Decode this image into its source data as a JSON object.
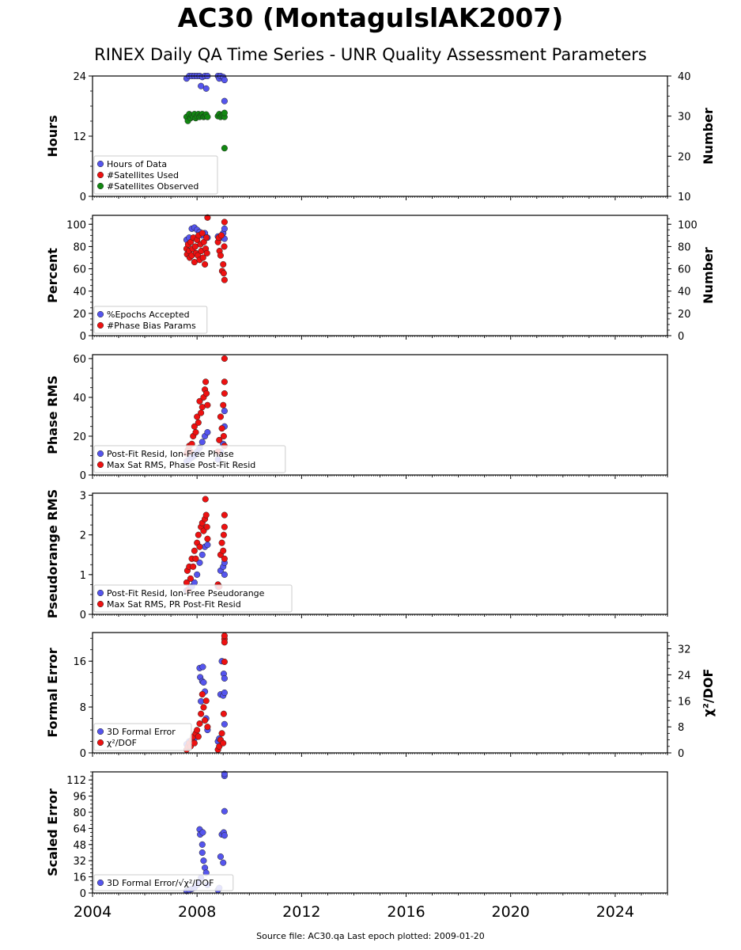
{
  "header": {
    "title": "AC30 (MontaguIslAK2007)",
    "subtitle": "RINEX Daily QA Time Series - UNR Quality Assessment Parameters"
  },
  "footer": {
    "source": "Source file: AC30.qa Last epoch plotted: 2009-01-20"
  },
  "colors": {
    "blue": "#5555ee",
    "red": "#ee1111",
    "green": "#118811"
  },
  "xaxis": {
    "range": [
      2004,
      2026
    ],
    "tick_labels": [
      "2004",
      "2008",
      "2012",
      "2016",
      "2020",
      "2024"
    ],
    "tick_values": [
      2004,
      2008,
      2012,
      2016,
      2020,
      2024
    ]
  },
  "chart_data": [
    {
      "type": "scatter",
      "ylabel": "Hours",
      "ylabel2": "Number",
      "ylim": [
        0,
        24
      ],
      "ylim2": [
        10,
        40
      ],
      "yticks": [
        0,
        12,
        24
      ],
      "yticks2": [
        10,
        20,
        30,
        40
      ],
      "legend": [
        "Hours of Data",
        "#Satellites Used",
        "#Satellites Observed"
      ],
      "series": [
        {
          "name": "Hours of Data",
          "color": "blue",
          "axis": "left",
          "x": [
            2007.6,
            2007.7,
            2007.8,
            2007.9,
            2008.0,
            2008.1,
            2008.15,
            2008.2,
            2008.3,
            2008.35,
            2008.4,
            2008.8,
            2008.85,
            2008.9,
            2009.0,
            2009.05,
            2009.05
          ],
          "y": [
            23.5,
            24,
            24,
            24,
            24,
            24,
            22.0,
            23.8,
            24,
            21.5,
            24,
            24,
            23.5,
            24,
            23.8,
            23.2,
            19.0
          ]
        },
        {
          "name": "#Satellites Observed",
          "color": "green",
          "axis": "right",
          "x": [
            2007.6,
            2007.65,
            2007.7,
            2007.75,
            2007.8,
            2007.85,
            2007.9,
            2007.95,
            2008.0,
            2008.05,
            2008.1,
            2008.15,
            2008.2,
            2008.25,
            2008.3,
            2008.35,
            2008.4,
            2008.8,
            2008.85,
            2008.9,
            2008.95,
            2009.0,
            2009.05,
            2009.05,
            2009.05
          ],
          "y": [
            29.8,
            28.8,
            30.5,
            29.5,
            30.2,
            29.8,
            30.5,
            29.5,
            30.0,
            30.5,
            29.8,
            30.2,
            30.5,
            29.8,
            30.0,
            30.4,
            29.8,
            30.0,
            30.5,
            29.8,
            30.2,
            30.4,
            29.8,
            30.8,
            22.0
          ]
        }
      ]
    },
    {
      "type": "scatter",
      "ylabel": "Percent",
      "ylabel2": "Number",
      "ylim": [
        0,
        108
      ],
      "ylim2": [
        0,
        108
      ],
      "yticks": [
        0,
        20,
        40,
        60,
        80,
        100
      ],
      "yticks2": [
        0,
        20,
        40,
        60,
        80,
        100
      ],
      "legend": [
        "%Epochs Accepted",
        "#Phase Bias Params"
      ],
      "series": [
        {
          "name": "%Epochs Accepted",
          "color": "blue",
          "axis": "left",
          "x": [
            2007.6,
            2007.7,
            2007.8,
            2007.9,
            2008.0,
            2008.1,
            2008.2,
            2008.3,
            2008.4,
            2008.8,
            2008.9,
            2009.0,
            2009.05,
            2009.05
          ],
          "y": [
            86,
            88,
            96,
            97,
            95,
            93,
            90,
            92,
            88,
            89,
            88,
            92,
            96,
            87
          ]
        },
        {
          "name": "#Phase Bias Params",
          "color": "red",
          "axis": "right",
          "x": [
            2007.6,
            2007.62,
            2007.66,
            2007.7,
            2007.72,
            2007.76,
            2007.8,
            2007.83,
            2007.86,
            2007.9,
            2007.93,
            2007.96,
            2008.0,
            2008.03,
            2008.06,
            2008.1,
            2008.13,
            2008.16,
            2008.2,
            2008.23,
            2008.26,
            2008.3,
            2008.33,
            2008.36,
            2008.38,
            2008.4,
            2008.8,
            2008.83,
            2008.86,
            2008.9,
            2008.93,
            2008.96,
            2009.0,
            2009.02,
            2009.04,
            2009.05,
            2009.05
          ],
          "y": [
            78,
            73,
            82,
            76,
            70,
            84,
            72,
            78,
            88,
            66,
            80,
            74,
            86,
            72,
            90,
            68,
            82,
            76,
            92,
            70,
            84,
            64,
            78,
            88,
            74,
            106,
            84,
            88,
            76,
            72,
            90,
            58,
            64,
            56,
            80,
            50,
            102
          ]
        }
      ]
    },
    {
      "type": "scatter",
      "ylabel": "Phase RMS",
      "ylim": [
        0,
        62
      ],
      "yticks": [
        0,
        20,
        40,
        60
      ],
      "legend": [
        "Post-Fit Resid, Ion-Free Phase",
        "Max Sat RMS, Phase Post-Fit Resid"
      ],
      "series": [
        {
          "name": "Post-Fit Resid, Ion-Free Phase",
          "color": "blue",
          "x": [
            2007.6,
            2007.7,
            2007.8,
            2007.9,
            2008.0,
            2008.1,
            2008.2,
            2008.3,
            2008.4,
            2008.8,
            2008.9,
            2009.0,
            2009.05,
            2009.05
          ],
          "y": [
            7,
            8,
            9,
            10,
            12,
            14,
            17,
            20,
            22,
            8,
            12,
            16,
            25,
            33
          ]
        },
        {
          "name": "Max Sat RMS, Phase Post-Fit Resid",
          "color": "red",
          "x": [
            2007.6,
            2007.65,
            2007.7,
            2007.75,
            2007.8,
            2007.85,
            2007.9,
            2007.95,
            2008.0,
            2008.05,
            2008.1,
            2008.15,
            2008.2,
            2008.25,
            2008.3,
            2008.33,
            2008.36,
            2008.4,
            2008.8,
            2008.85,
            2008.9,
            2008.95,
            2009.0,
            2009.02,
            2009.05,
            2009.05,
            2009.05,
            2009.05
          ],
          "y": [
            11,
            13,
            15,
            12,
            16,
            20,
            25,
            22,
            30,
            27,
            38,
            32,
            35,
            40,
            44,
            48,
            42,
            36,
            12,
            18,
            30,
            24,
            36,
            20,
            42,
            48,
            60,
            15
          ]
        }
      ]
    },
    {
      "type": "scatter",
      "ylabel": "Pseudorange RMS",
      "ylim": [
        0,
        3.05
      ],
      "yticks": [
        0,
        1,
        2,
        3
      ],
      "legend": [
        "Post-Fit Resid, Ion-Free Pseudorange",
        "Max Sat RMS, PR Post-Fit Resid"
      ],
      "series": [
        {
          "name": "Post-Fit Resid, Ion-Free Pseudorange",
          "color": "blue",
          "x": [
            2007.6,
            2007.7,
            2007.8,
            2007.9,
            2008.0,
            2008.1,
            2008.2,
            2008.3,
            2008.4,
            2008.8,
            2008.9,
            2009.0,
            2009.05,
            2009.05
          ],
          "y": [
            0.6,
            0.65,
            0.7,
            0.8,
            1.0,
            1.3,
            1.5,
            1.7,
            1.75,
            0.7,
            1.1,
            1.2,
            1.0,
            1.3
          ]
        },
        {
          "name": "Max Sat RMS, PR Post-Fit Resid",
          "color": "red",
          "x": [
            2007.6,
            2007.63,
            2007.66,
            2007.7,
            2007.75,
            2007.8,
            2007.85,
            2007.9,
            2007.95,
            2008.0,
            2008.05,
            2008.1,
            2008.15,
            2008.2,
            2008.25,
            2008.3,
            2008.32,
            2008.35,
            2008.38,
            2008.4,
            2008.8,
            2008.85,
            2008.9,
            2008.95,
            2009.0,
            2009.02,
            2009.05,
            2009.05,
            2009.05
          ],
          "y": [
            0.8,
            1.1,
            0.6,
            1.2,
            0.9,
            1.4,
            1.2,
            1.6,
            1.4,
            1.8,
            2.0,
            1.7,
            2.2,
            2.3,
            2.1,
            2.4,
            2.9,
            2.5,
            2.2,
            1.9,
            0.75,
            0.7,
            1.5,
            1.8,
            1.6,
            2.0,
            2.2,
            1.4,
            2.5
          ]
        }
      ]
    },
    {
      "type": "scatter",
      "ylabel": "Formal Error",
      "ylabel2": "χ²/DOF",
      "ylim": [
        0,
        21
      ],
      "ylim2": [
        0,
        37
      ],
      "yticks": [
        0,
        8,
        16
      ],
      "yticks2": [
        0,
        8,
        16,
        24,
        32
      ],
      "legend": [
        "3D Formal Error",
        "χ²/DOF"
      ],
      "series": [
        {
          "name": "3D Formal Error",
          "color": "blue",
          "axis": "left",
          "x": [
            2007.6,
            2007.7,
            2007.8,
            2007.9,
            2008.0,
            2008.1,
            2008.12,
            2008.15,
            2008.2,
            2008.22,
            2008.25,
            2008.3,
            2008.35,
            2008.4,
            2008.8,
            2008.85,
            2008.9,
            2008.95,
            2009.0,
            2009.02,
            2009.05,
            2009.05,
            2009.05
          ],
          "y": [
            1.5,
            2.0,
            2.0,
            2.5,
            3.0,
            14.8,
            13.2,
            9.0,
            12.5,
            15.0,
            12.3,
            10.7,
            6.0,
            4.0,
            2.0,
            2.5,
            10.2,
            16.0,
            10.0,
            13.8,
            13.0,
            10.5,
            5.0
          ]
        },
        {
          "name": "χ²/DOF",
          "color": "red",
          "axis": "right",
          "x": [
            2007.6,
            2007.65,
            2007.7,
            2007.75,
            2007.8,
            2007.85,
            2007.9,
            2007.95,
            2008.0,
            2008.05,
            2008.1,
            2008.15,
            2008.2,
            2008.25,
            2008.3,
            2008.35,
            2008.4,
            2008.8,
            2008.85,
            2008.9,
            2008.95,
            2009.0,
            2009.02,
            2009.05,
            2009.05,
            2009.05,
            2009.05
          ],
          "y": [
            1,
            2,
            3,
            2,
            4,
            5,
            3,
            6,
            7,
            5,
            9,
            12,
            18,
            14,
            10,
            16,
            8,
            1,
            2,
            4,
            6,
            3,
            12,
            28,
            35,
            34,
            36
          ]
        }
      ]
    },
    {
      "type": "scatter",
      "ylabel": "Scaled Error",
      "ylim": [
        0,
        120
      ],
      "yticks": [
        0,
        16,
        32,
        48,
        64,
        80,
        96,
        112
      ],
      "legend": [
        "3D Formal Error/√χ²/DOF"
      ],
      "series": [
        {
          "name": "3D Formal Error/√χ²/DOF",
          "color": "blue",
          "x": [
            2007.6,
            2007.7,
            2007.8,
            2007.9,
            2008.0,
            2008.05,
            2008.1,
            2008.12,
            2008.15,
            2008.2,
            2008.2,
            2008.22,
            2008.25,
            2008.3,
            2008.35,
            2008.4,
            2008.8,
            2008.85,
            2008.9,
            2008.95,
            2009.0,
            2009.02,
            2009.05,
            2009.05,
            2009.05,
            2009.05
          ],
          "y": [
            2,
            3,
            4,
            5,
            8,
            10,
            63,
            58,
            15,
            48,
            40,
            60,
            32,
            25,
            20,
            8,
            3,
            5,
            36,
            58,
            30,
            60,
            57,
            81,
            116,
            118
          ]
        }
      ]
    }
  ]
}
